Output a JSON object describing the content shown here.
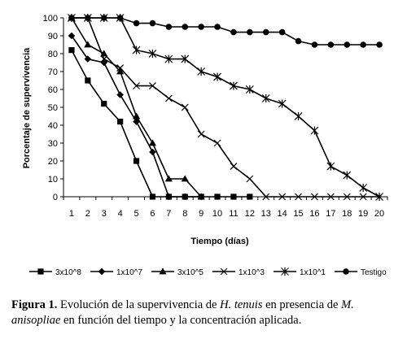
{
  "chart_data": {
    "type": "line",
    "x": [
      1,
      2,
      3,
      4,
      5,
      6,
      7,
      8,
      9,
      10,
      11,
      12,
      13,
      14,
      15,
      16,
      17,
      18,
      19,
      20
    ],
    "xlabel": "Tiempo (días)",
    "ylabel": "Porcentaje de supervivencia",
    "xlim": [
      1,
      20
    ],
    "ylim": [
      0,
      100
    ],
    "yticks": [
      0,
      10,
      20,
      30,
      40,
      50,
      60,
      70,
      80,
      90,
      100
    ],
    "grid": false,
    "legend_position": "bottom",
    "series": [
      {
        "name": "3x10^8",
        "marker": "square",
        "values": [
          82,
          65,
          52,
          42,
          20,
          0,
          0,
          0,
          0,
          0,
          0,
          0,
          null,
          null,
          null,
          null,
          null,
          null,
          null,
          null
        ]
      },
      {
        "name": "1x10^7",
        "marker": "diamond",
        "values": [
          90,
          77,
          75,
          57,
          42,
          25,
          0,
          0,
          0,
          null,
          null,
          null,
          null,
          null,
          null,
          null,
          null,
          null,
          null,
          null
        ]
      },
      {
        "name": "3x10^5",
        "marker": "triangle",
        "values": [
          100,
          85,
          80,
          70,
          45,
          30,
          10,
          10,
          0,
          null,
          null,
          null,
          null,
          null,
          null,
          null,
          null,
          null,
          null,
          null
        ]
      },
      {
        "name": "1x10^3",
        "marker": "x",
        "values": [
          100,
          100,
          77,
          72,
          62,
          62,
          55,
          50,
          35,
          30,
          17,
          10,
          0,
          0,
          0,
          0,
          0,
          0,
          0,
          0
        ]
      },
      {
        "name": "1x10^1",
        "marker": "star",
        "values": [
          100,
          100,
          100,
          100,
          82,
          80,
          77,
          77,
          70,
          67,
          62,
          60,
          55,
          52,
          45,
          37,
          17,
          12,
          5,
          0
        ]
      },
      {
        "name": "Testigo",
        "marker": "circle",
        "values": [
          100,
          100,
          100,
          100,
          97,
          97,
          95,
          95,
          95,
          95,
          92,
          92,
          92,
          92,
          87,
          85,
          85,
          85,
          85,
          85
        ]
      }
    ]
  },
  "caption": {
    "lead": "Figura 1.",
    "text_1": " Evolución de la supervivencia de ",
    "species": "H. tenuis",
    "text_2": " en presencia de ",
    "fungus": "M. anisopliae",
    "text_3": " en función del tiempo y la concentración aplicada."
  }
}
